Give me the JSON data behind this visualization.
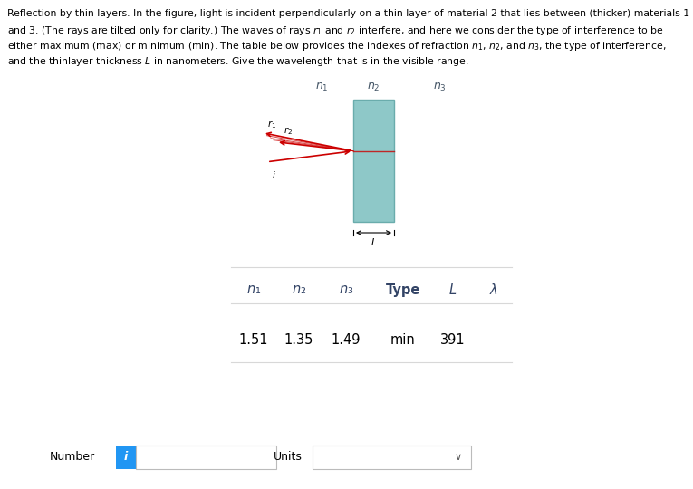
{
  "background_color": "#ffffff",
  "text_color": "#000000",
  "fig_width": 7.65,
  "fig_height": 5.4,
  "layer_color": "#8ec8c8",
  "layer_border_color": "#6aacac",
  "n1_label": "$n_1$",
  "n2_label": "$n_2$",
  "n3_label": "$n_3$",
  "r1_label": "$r_1$",
  "r2_label": "$r_2$",
  "i_label": "$i$",
  "L_label": "$\\leftarrow L \\rightarrow$",
  "table_n1": "n₁",
  "table_n2": "n₂",
  "table_n3": "n₃",
  "table_type": "Type",
  "table_L": "L",
  "table_lambda": "λ",
  "row_n1": "1.51",
  "row_n2": "1.35",
  "row_n3": "1.49",
  "row_type": "min",
  "row_L": "391",
  "row_lambda": "",
  "number_label": "Number",
  "units_label": "Units",
  "divider_color": "#d8d8d8",
  "blue_btn_color": "#2196F3",
  "ray_color": "#cc0000",
  "header_fontsize": 7.8,
  "diagram_text_color": "#445566"
}
